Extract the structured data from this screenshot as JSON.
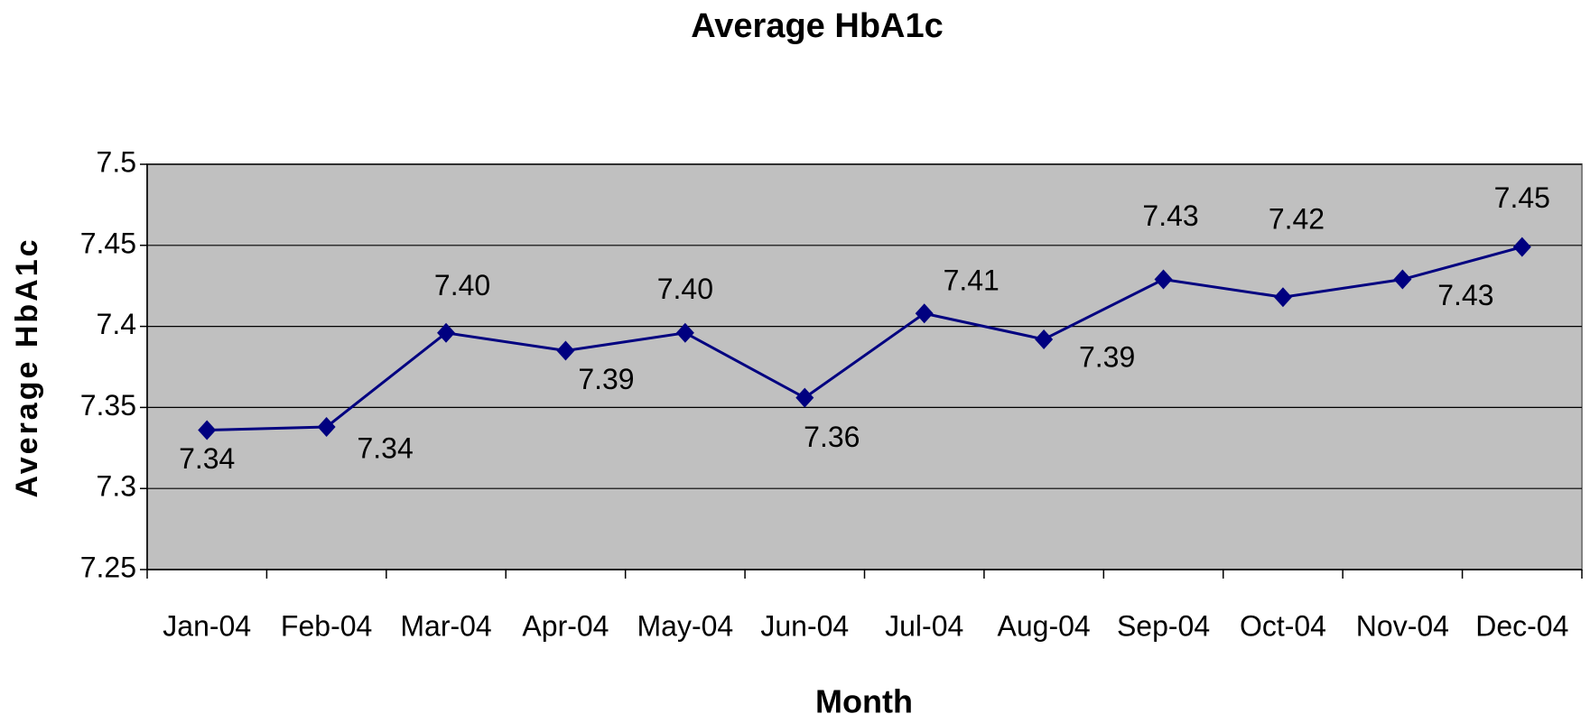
{
  "chart_data": {
    "type": "line",
    "title": "Average HbA1c",
    "x_label": "Month",
    "y_label": "Average HbA1c",
    "categories": [
      "Jan-04",
      "Feb-04",
      "Mar-04",
      "Apr-04",
      "May-04",
      "Jun-04",
      "Jul-04",
      "Aug-04",
      "Sep-04",
      "Oct-04",
      "Nov-04",
      "Dec-04"
    ],
    "series": [
      {
        "name": "Average HbA1c",
        "color": "#000080",
        "values": [
          7.336,
          7.338,
          7.396,
          7.385,
          7.396,
          7.356,
          7.408,
          7.392,
          7.429,
          7.418,
          7.429,
          7.449
        ],
        "value_labels": [
          "7.34",
          "7.34",
          "7.40",
          "7.39",
          "7.40",
          "7.36",
          "7.41",
          "7.39",
          "7.43",
          "7.42",
          "7.43",
          "7.45"
        ]
      }
    ],
    "ylim": [
      7.25,
      7.5
    ],
    "yticks": [
      7.25,
      7.3,
      7.35,
      7.4,
      7.45,
      7.5
    ],
    "grid": true,
    "background": "#c0c0c0"
  }
}
